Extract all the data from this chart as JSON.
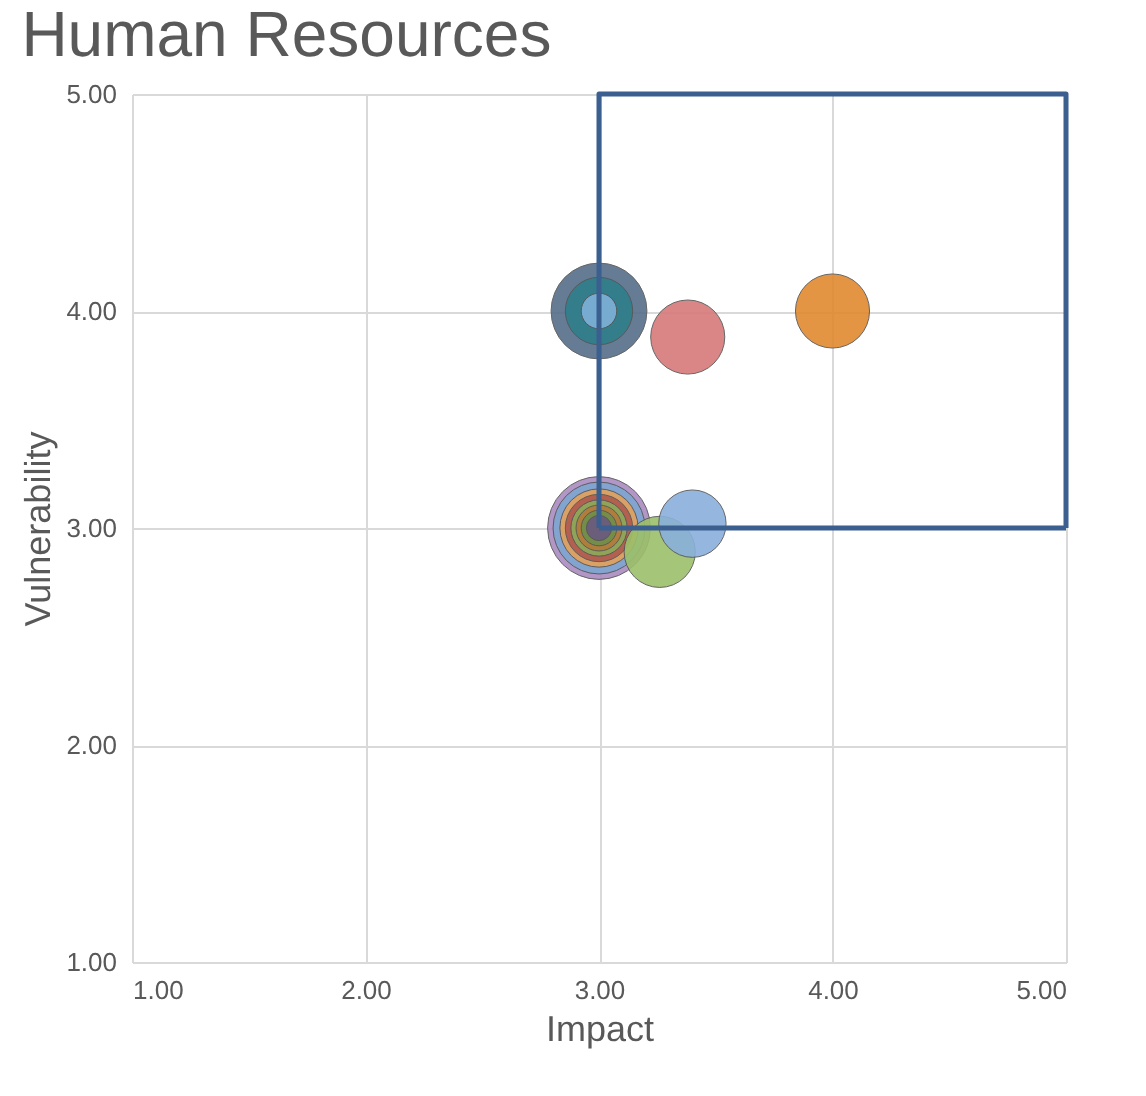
{
  "chart_data": {
    "type": "bubble",
    "title": "Human Resources",
    "xlabel": "Impact",
    "ylabel": "Vulnerability",
    "xlim": [
      1,
      5
    ],
    "ylim": [
      1,
      5
    ],
    "xticks": [
      {
        "value": 1,
        "label": "1.00"
      },
      {
        "value": 2,
        "label": "2.00"
      },
      {
        "value": 3,
        "label": "3.00"
      },
      {
        "value": 4,
        "label": "4.00"
      },
      {
        "value": 5,
        "label": "5.00"
      }
    ],
    "yticks": [
      {
        "value": 1,
        "label": "1.00"
      },
      {
        "value": 2,
        "label": "2.00"
      },
      {
        "value": 3,
        "label": "3.00"
      },
      {
        "value": 4,
        "label": "4.00"
      },
      {
        "value": 5,
        "label": "5.00"
      }
    ],
    "grid": true,
    "legend": false,
    "series": [
      {
        "x": [
          3,
          3,
          3,
          3,
          3,
          3,
          3,
          3,
          3,
          3,
          3,
          3.38,
          4,
          3.26,
          3.4
        ],
        "values": [
          3,
          3,
          3,
          3,
          3,
          3,
          3,
          3,
          4,
          4,
          4,
          3.88,
          4,
          2.89,
          3.02
        ],
        "sizes": [
          1,
          0.8,
          0.58,
          0.43,
          0.3,
          0.2,
          0.12,
          0.06,
          0.87,
          0.43,
          0.12,
          0.52,
          0.52,
          0.48,
          0.43
        ],
        "colors": [
          "#a98bc0",
          "#7fa6cf",
          "#e3a15a",
          "#b0594f",
          "#8cab5a",
          "#b37a3a",
          "#6e8f4a",
          "#6b5a80",
          "#566e8a",
          "#2f7f8c",
          "#7fb0d8",
          "#d77a7a",
          "#e08a30",
          "#9cc06a",
          "#8ab0dc"
        ]
      },
      {
        "type": "line",
        "color": "#3b5f8f",
        "x": [
          3,
          3,
          5,
          5
        ],
        "values": [
          3,
          5,
          5,
          3
        ]
      },
      {
        "type": "line",
        "color": "#3b5f8f",
        "x": [
          3,
          5
        ],
        "values": [
          3,
          3
        ]
      }
    ]
  }
}
